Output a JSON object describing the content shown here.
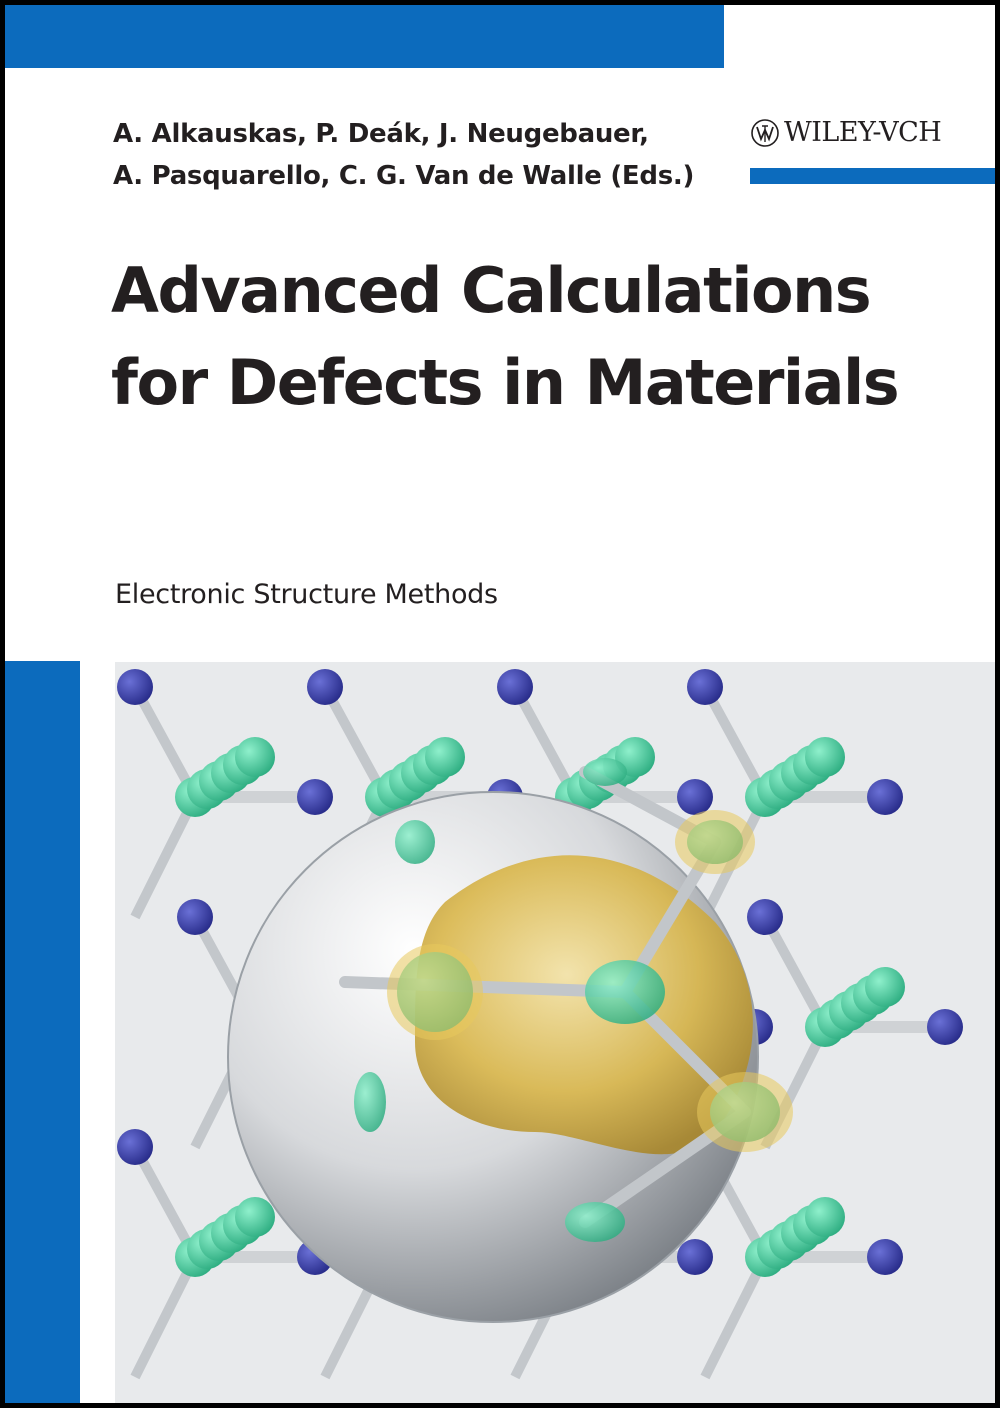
{
  "cover": {
    "authors_line1": "A. Alkauskas, P. Deák, J. Neugebauer,",
    "authors_line2": "A. Pasquarello, C. G. Van de Walle (Eds.)",
    "publisher": "WILEY-VCH",
    "title_line1": "Advanced Calculations",
    "title_line2": "for Defects in Materials",
    "subtitle": "Electronic Structure Methods"
  },
  "colors": {
    "brand_blue": "#0c6bbd",
    "atom_green": "#4fd1a5",
    "atom_blue": "#3a3fa6",
    "density_gold": "#d9b64a"
  }
}
